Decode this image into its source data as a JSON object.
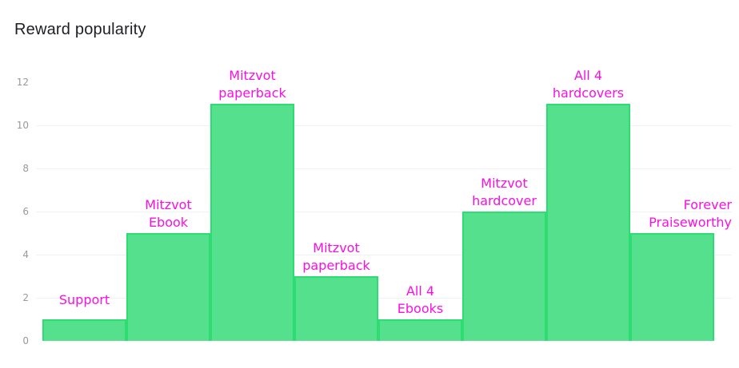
{
  "chart_data": {
    "type": "bar",
    "title": "Reward popularity",
    "categories": [
      "Support",
      "Mitzvot Ebook",
      "Mitzvot paperback",
      "Mitzvot paperback",
      "All 4 Ebooks",
      "Mitzvot hardcover",
      "All 4 hardcovers",
      "Forever Praiseworthy"
    ],
    "values": [
      1,
      5,
      11,
      3,
      1,
      6,
      11,
      5
    ],
    "label_lines": [
      [
        "Support"
      ],
      [
        "Mitzvot",
        "Ebook"
      ],
      [
        "Mitzvot",
        "paperback"
      ],
      [
        "Mitzvot",
        "paperback"
      ],
      [
        "All 4",
        "Ebooks"
      ],
      [
        "Mitzvot",
        "hardcover"
      ],
      [
        "All 4",
        "hardcovers"
      ],
      [
        "Forever",
        "Praiseworthy"
      ]
    ],
    "xlabel": "",
    "ylabel": "",
    "ylim": [
      0,
      12
    ],
    "y_ticks": [
      0,
      2,
      4,
      6,
      8,
      10,
      12
    ],
    "grid_values": [
      2,
      4,
      6,
      8,
      10
    ],
    "legend": null,
    "colors": {
      "bar_fill": "#55e08d",
      "bar_border": "#2edd72",
      "label": "#fb0fe0",
      "tick": "#969a9e",
      "grid": "#f0f1f3",
      "title": "#1d1f23",
      "background": "#ffffff"
    }
  }
}
